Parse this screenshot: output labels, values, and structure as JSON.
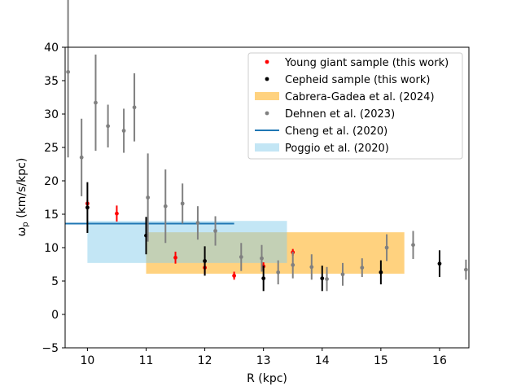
{
  "chart_data": {
    "type": "scatter",
    "xlabel": "R (kpc)",
    "ylabel": "ω_p (km/s/kpc)",
    "xlim": [
      9.62,
      16.5
    ],
    "ylim": [
      -5,
      40
    ],
    "xticks": [
      "10",
      "11",
      "12",
      "13",
      "14",
      "15",
      "16"
    ],
    "yticks": [
      "−5",
      "0",
      "5",
      "10",
      "15",
      "20",
      "25",
      "30",
      "35",
      "40"
    ],
    "xtick_values": [
      10,
      11,
      12,
      13,
      14,
      15,
      16
    ],
    "ytick_values": [
      -5,
      0,
      5,
      10,
      15,
      20,
      25,
      30,
      35,
      40
    ],
    "legend_position": "top-right",
    "legend": [
      {
        "label": "Young giant sample (this work)",
        "kind": "marker",
        "color": "#ff0000"
      },
      {
        "label": "Cepheid sample (this work)",
        "kind": "marker",
        "color": "#000000"
      },
      {
        "label": "Cabrera-Gadea et al. (2024)",
        "kind": "patch",
        "color": "#ffa500"
      },
      {
        "label": "Dehnen et al. (2023)",
        "kind": "marker",
        "color": "#808080"
      },
      {
        "label": "Cheng et al. (2020)",
        "kind": "line",
        "color": "#1f77b4"
      },
      {
        "label": "Poggio et al. (2020)",
        "kind": "patch",
        "color": "#87ceeb"
      }
    ],
    "series": [
      {
        "name": "Young giant sample (this work)",
        "color": "#ff0000",
        "points": [
          {
            "x": 10.0,
            "y": 16.6,
            "err": 0.5
          },
          {
            "x": 10.5,
            "y": 15.1,
            "err": 1.2
          },
          {
            "x": 11.5,
            "y": 8.5,
            "err": 0.9
          },
          {
            "x": 12.0,
            "y": 7.0,
            "err": 1.0
          },
          {
            "x": 12.5,
            "y": 5.8,
            "err": 0.6
          },
          {
            "x": 13.0,
            "y": 7.2,
            "err": 0.6
          },
          {
            "x": 13.5,
            "y": 9.3,
            "err": 0.5
          }
        ]
      },
      {
        "name": "Cepheid sample (this work)",
        "color": "#000000",
        "points": [
          {
            "x": 10.0,
            "y": 16.0,
            "err": 3.8
          },
          {
            "x": 11.0,
            "y": 11.8,
            "err": 2.8
          },
          {
            "x": 12.0,
            "y": 8.0,
            "err": 2.2
          },
          {
            "x": 13.0,
            "y": 5.4,
            "err": 1.9
          },
          {
            "x": 14.0,
            "y": 5.4,
            "err": 1.9
          },
          {
            "x": 15.0,
            "y": 6.3,
            "err": 1.8
          },
          {
            "x": 16.0,
            "y": 7.6,
            "err": 2.0
          }
        ]
      },
      {
        "name": "Dehnen et al. (2023)",
        "color": "#808080",
        "points": [
          {
            "x": 9.67,
            "y": 36.3,
            "err": 12.8
          },
          {
            "x": 9.9,
            "y": 23.5,
            "err": 5.8
          },
          {
            "x": 10.14,
            "y": 31.7,
            "err": 7.2
          },
          {
            "x": 10.35,
            "y": 28.2,
            "err": 3.2
          },
          {
            "x": 10.62,
            "y": 27.5,
            "err": 3.3
          },
          {
            "x": 10.8,
            "y": 31.0,
            "err": 5.1
          },
          {
            "x": 11.03,
            "y": 17.5,
            "err": 6.6
          },
          {
            "x": 11.33,
            "y": 16.2,
            "err": 5.5
          },
          {
            "x": 11.62,
            "y": 16.6,
            "err": 3.0
          },
          {
            "x": 11.88,
            "y": 13.7,
            "err": 2.5
          },
          {
            "x": 12.18,
            "y": 12.5,
            "err": 2.2
          },
          {
            "x": 12.62,
            "y": 8.6,
            "err": 2.1
          },
          {
            "x": 12.97,
            "y": 8.4,
            "err": 2.0
          },
          {
            "x": 13.25,
            "y": 6.3,
            "err": 1.8
          },
          {
            "x": 13.5,
            "y": 7.4,
            "err": 2.0
          },
          {
            "x": 13.82,
            "y": 7.1,
            "err": 1.9
          },
          {
            "x": 14.08,
            "y": 5.3,
            "err": 1.8
          },
          {
            "x": 14.35,
            "y": 6.0,
            "err": 1.7
          },
          {
            "x": 14.68,
            "y": 7.0,
            "err": 1.4
          },
          {
            "x": 15.1,
            "y": 10.0,
            "err": 2.0
          },
          {
            "x": 15.55,
            "y": 10.4,
            "err": 2.1
          },
          {
            "x": 16.45,
            "y": 6.7,
            "err": 1.5
          }
        ]
      }
    ],
    "bands": [
      {
        "name": "Cabrera-Gadea et al. (2024)",
        "color": "#ffa500",
        "opacity": 0.5,
        "x0": 11.0,
        "x1": 15.4,
        "y0": 6.1,
        "y1": 12.3
      },
      {
        "name": "Poggio et al. (2020)",
        "color": "#87ceeb",
        "opacity": 0.5,
        "x0": 10.0,
        "x1": 13.4,
        "y0": 7.7,
        "y1": 14.0
      }
    ],
    "lines": [
      {
        "name": "Cheng et al. (2020)",
        "color": "#1f77b4",
        "x0": 9.62,
        "x1": 12.5,
        "y": 13.6
      }
    ]
  }
}
